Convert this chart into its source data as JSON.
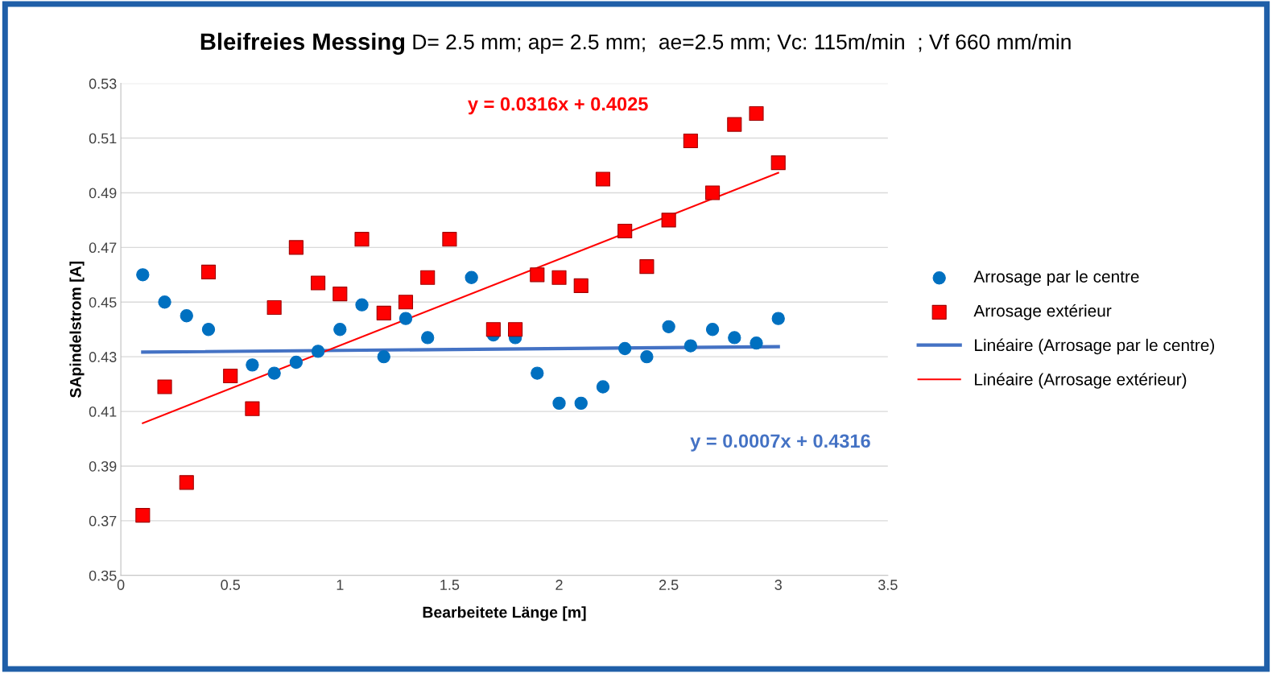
{
  "chart_data": {
    "type": "scatter",
    "title": "Bleifreies Messing",
    "subtitle": "D= 2.5 mm; ap= 2.5 mm;  ae=2.5 mm; Vc: 115m/min  ; Vf 660 mm/min",
    "xlabel": "Bearbeitete Länge [m]",
    "ylabel": "SApindelstrom [A]",
    "xlim": [
      0,
      3.5
    ],
    "xticks": [
      0,
      0.5,
      1,
      1.5,
      2,
      2.5,
      3,
      3.5
    ],
    "ylim": [
      0.35,
      0.53
    ],
    "yticks": [
      0.35,
      0.37,
      0.39,
      0.41,
      0.43,
      0.45,
      0.47,
      0.49,
      0.51,
      0.53
    ],
    "grid": "y",
    "legend": "right",
    "series": [
      {
        "name": "Arrosage par le centre",
        "marker": "circle",
        "color": "#0070c0",
        "x": [
          0.1,
          0.2,
          0.3,
          0.4,
          0.6,
          0.7,
          0.8,
          0.9,
          1.0,
          1.1,
          1.2,
          1.3,
          1.4,
          1.6,
          1.7,
          1.8,
          1.9,
          2.0,
          2.1,
          2.2,
          2.3,
          2.4,
          2.5,
          2.6,
          2.7,
          2.8,
          2.9,
          3.0
        ],
        "values": [
          0.46,
          0.45,
          0.445,
          0.44,
          0.427,
          0.424,
          0.428,
          0.432,
          0.44,
          0.449,
          0.43,
          0.444,
          0.437,
          0.459,
          0.438,
          0.437,
          0.424,
          0.413,
          0.413,
          0.419,
          0.433,
          0.43,
          0.441,
          0.434,
          0.44,
          0.437,
          0.435,
          0.444
        ]
      },
      {
        "name": "Arrosage extérieur",
        "marker": "square",
        "color": "#ff0000",
        "x": [
          0.1,
          0.2,
          0.3,
          0.4,
          0.5,
          0.6,
          0.7,
          0.8,
          0.9,
          1.0,
          1.1,
          1.2,
          1.3,
          1.4,
          1.5,
          1.7,
          1.8,
          1.9,
          2.0,
          2.1,
          2.2,
          2.3,
          2.4,
          2.5,
          2.6,
          2.7,
          2.8,
          2.9,
          3.0
        ],
        "values": [
          0.372,
          0.419,
          0.384,
          0.461,
          0.423,
          0.411,
          0.448,
          0.47,
          0.457,
          0.453,
          0.473,
          0.446,
          0.45,
          0.459,
          0.473,
          0.44,
          0.44,
          0.46,
          0.459,
          0.456,
          0.495,
          0.476,
          0.463,
          0.48,
          0.509,
          0.49,
          0.515,
          0.519,
          0.501
        ]
      },
      {
        "name": "Linéaire (Arrosage par le centre)",
        "type": "line",
        "marker": "none",
        "line_style": "solid",
        "color": "#4472c4",
        "x": [
          0.1,
          3.0
        ],
        "values": [
          0.4317,
          0.4337
        ]
      },
      {
        "name": "Linéaire (Arrosage extérieur)",
        "type": "line",
        "marker": "none",
        "line_style": "solid",
        "color": "#ff0000",
        "x": [
          0.1,
          3.0
        ],
        "values": [
          0.4057,
          0.4973
        ]
      }
    ],
    "annotations": [
      "y = 0.0007x + 0.4316",
      "y = 0.0316x + 0.4025"
    ]
  }
}
